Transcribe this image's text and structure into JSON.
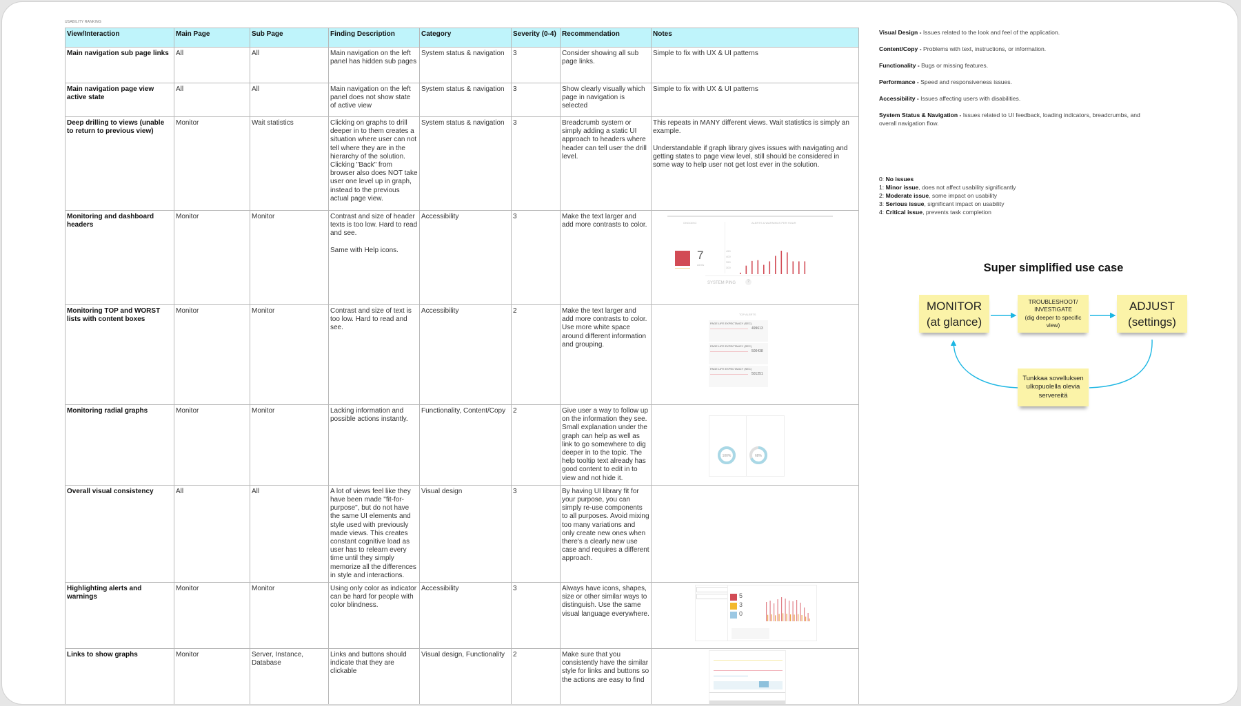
{
  "sheet_label": "USABILITY RANKING",
  "table": {
    "columns": [
      "View/Interaction",
      "Main Page",
      "Sub Page",
      "Finding Description",
      "Category",
      "Severity (0-4)",
      "Recommendation",
      "Notes"
    ],
    "rows": [
      {
        "view": "Main navigation sub page links",
        "main": "All",
        "sub": "All",
        "finding": "Main navigation on the left panel has hidden sub pages",
        "category": "System status & navigation",
        "severity": "3",
        "recommendation": "Consider showing all sub page links.",
        "notes": "Simple to fix with UX & UI patterns"
      },
      {
        "view": "Main navigation page view active state",
        "main": "All",
        "sub": "All",
        "finding": "Main navigation on the left panel does not show state of active view",
        "category": "System status & navigation",
        "severity": "3",
        "recommendation": "Show clearly visually which page in navigation is selected",
        "notes": "Simple to fix with UX & UI patterns"
      },
      {
        "view": "Deep drilling to views (unable to return to previous view)",
        "main": "Monitor",
        "sub": "Wait statistics",
        "finding": "Clicking on graphs to drill deeper in to them creates a situation where user can not tell where they are in the hierarchy of the solution. Clicking \"Back\" from browser also does NOT take user one level up in graph, instead to the previous actual page view.",
        "category": "System status & navigation",
        "severity": "3",
        "recommendation": "Breadcrumb system or simply adding a static UI approach to headers where header can tell user the drill level.",
        "notes": "This repeats in MANY different views. Wait statistics is simply an example.\n\nUnderstandable if graph library gives issues with navigating and getting states to page view level, still should be considered in some way to help user not get lost ever in the solution."
      },
      {
        "view": "Monitoring and dashboard headers",
        "main": "Monitor",
        "sub": "Monitor",
        "finding": "Contrast and size of header texts is too low. Hard to read and see.\n\nSame with Help icons.",
        "category": "Accessibility",
        "severity": "3",
        "recommendation": "Make the text larger and add more contrasts to color.",
        "notes": ""
      },
      {
        "view": "Monitoring TOP and WORST lists with content boxes",
        "main": "Monitor",
        "sub": "Monitor",
        "finding": "Contrast and size of text is too low. Hard to read and see.",
        "category": "Accessibility",
        "severity": "2",
        "recommendation": "Make the text larger and add more contrasts to color. Use more white space around different information and grouping.",
        "notes": ""
      },
      {
        "view": "Monitoring radial graphs",
        "main": "Monitor",
        "sub": "Monitor",
        "finding": "Lacking information and possible actions instantly.",
        "category": "Functionality, Content/Copy",
        "severity": "2",
        "recommendation": "Give user a way to follow up on the information they see. Small explanation under the graph can help as well as link to go somewhere to dig deeper in to the topic. The help tooltip text already has good content to edit in to view and not hide it.",
        "notes": ""
      },
      {
        "view": "Overall visual consistency",
        "main": "All",
        "sub": "All",
        "finding": "A lot of views feel like they have been made \"fit-for-purpose\", but do not have the same UI elements and style used with previously made views. This creates constant cognitive load as user has to relearn every time until they simply memorize all the differences in style and interactions.",
        "category": "Visual design",
        "severity": "3",
        "recommendation": "By having UI library fit for your purpose, you can simply re-use components to all purposes. Avoid mixing too many variations and only create new ones when there's a clearly new use case and requires a different approach.",
        "notes": ""
      },
      {
        "view": "Highlighting alerts and warnings",
        "main": "Monitor",
        "sub": "Monitor",
        "finding": "Using only color as indicator can be hard for people with color blindness.",
        "category": "Accessibility",
        "severity": "3",
        "recommendation": "Always have icons, shapes, size or other similar ways to distinguish. Use the same visual language everywhere.",
        "notes": ""
      },
      {
        "view": "Links to show graphs",
        "main": "Monitor",
        "sub": "Server, Instance, Database",
        "finding": "Links and buttons should indicate that they are clickable",
        "category": "Visual design, Functionality",
        "severity": "2",
        "recommendation": "Make sure that you consistently have the similar style for links and buttons so the actions are easy to find",
        "notes": ""
      }
    ]
  },
  "thumbnails": {
    "headers": {
      "ongoing": "ONGOING",
      "per_hour": "ALERTS & WARNINGS PER HOUR",
      "count": "7",
      "count_label": "Alerts",
      "ping": "SYSTEM PING",
      "help": "?",
      "y_ticks": [
        "450",
        "400",
        "350",
        "300"
      ],
      "bars": [
        302,
        320,
        332,
        334,
        322,
        331,
        345,
        359,
        354,
        331,
        331,
        331
      ]
    },
    "lists": {
      "title": "TOP ALERTS",
      "items": [
        {
          "name": "PAGE LIFE EXPECTANCY (SEC)",
          "value": "499613"
        },
        {
          "name": "PAGE LIFE EXPECTANCY (SEC)",
          "value": "500438"
        },
        {
          "name": "PAGE LIFE EXPECTANCY (SEC)",
          "value": "501251"
        }
      ]
    },
    "radial": {
      "gauges": [
        {
          "label": "100%",
          "value": 100
        },
        {
          "label": "68%",
          "value": 68
        }
      ]
    },
    "alerts": {
      "counts": [
        {
          "value": "5",
          "color": "#d24b55"
        },
        {
          "value": "3",
          "color": "#f3b82c"
        },
        {
          "value": "0",
          "color": "#9cc8e3"
        }
      ]
    }
  },
  "legend": {
    "categories": [
      {
        "term": "Visual Design -",
        "desc": " Issues related to the look and feel of the application."
      },
      {
        "term": "Content/Copy -",
        "desc": " Problems with text, instructions, or information."
      },
      {
        "term": "Functionality -",
        "desc": " Bugs or missing features."
      },
      {
        "term": "Performance -",
        "desc": " Speed and responsiveness issues."
      },
      {
        "term": "Accessibility -",
        "desc": " Issues affecting users with disabilities."
      },
      {
        "term": "System Status & Navigation -",
        "desc": " Issues related to UI feedback, loading indicators, breadcrumbs, and overall navigation flow."
      }
    ],
    "severity": [
      {
        "num": "0",
        "term": "No issues",
        "desc": ""
      },
      {
        "num": "1",
        "term": "Minor issue",
        "desc": ", does not affect usability significantly"
      },
      {
        "num": "2",
        "term": "Moderate issue",
        "desc": ", some impact on usability"
      },
      {
        "num": "3",
        "term": "Serious issue",
        "desc": ", significant impact on usability"
      },
      {
        "num": "4",
        "term": "Critical issue",
        "desc": ", prevents task completion"
      }
    ]
  },
  "diagram": {
    "title": "Super simplified use case",
    "monitor": "MONITOR\n(at glance)",
    "investigate": "TROUBLESHOOT/\nINVESTIGATE\n(dig deeper to specific view)",
    "adjust": "ADJUST\n(settings)",
    "external": "Tunkkaa sovelluksen ulkopuolella olevia servereitä",
    "arrow_color": "#1cb6e3",
    "note_color": "#fbf3a8"
  },
  "colors": {
    "header_bg": "#bff4fb",
    "alert_red": "#d24b55"
  }
}
